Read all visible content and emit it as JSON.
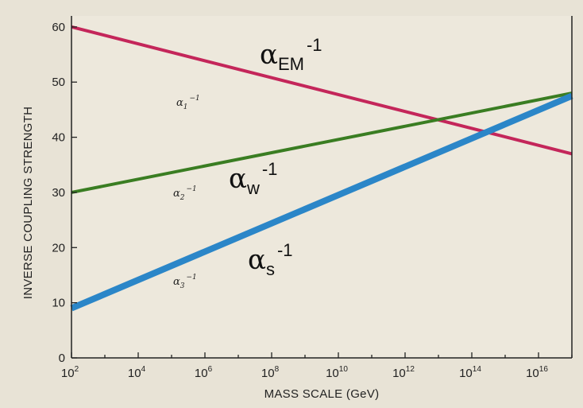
{
  "chart_data": {
    "type": "line",
    "xlabel": "MASS SCALE (GeV)",
    "ylabel": "INVERSE COUPLING STRENGTH",
    "xscale": "log",
    "xlim_exponent": [
      2,
      17
    ],
    "ylim": [
      0,
      62
    ],
    "x_ticks": [
      {
        "base": "10",
        "exp": "2",
        "value": 2
      },
      {
        "base": "10",
        "exp": "4",
        "value": 4
      },
      {
        "base": "10",
        "exp": "6",
        "value": 6
      },
      {
        "base": "10",
        "exp": "8",
        "value": 8
      },
      {
        "base": "10",
        "exp": "10",
        "value": 10
      },
      {
        "base": "10",
        "exp": "12",
        "value": 12
      },
      {
        "base": "10",
        "exp": "14",
        "value": 14
      },
      {
        "base": "10",
        "exp": "16",
        "value": 16
      }
    ],
    "y_ticks": [
      0,
      10,
      20,
      30,
      40,
      50,
      60
    ],
    "grid": false,
    "series": [
      {
        "key": "alpha1",
        "color": "#c4265a",
        "stroke": 4,
        "x_exponent": [
          2,
          17
        ],
        "values": [
          60,
          37
        ],
        "small_label": {
          "greek": "α",
          "sub": "1",
          "sup": "−1"
        },
        "big_label": {
          "greek": "α",
          "sub": "EM",
          "sup": "-1"
        }
      },
      {
        "key": "alpha2",
        "color": "#3a7d22",
        "stroke": 4,
        "x_exponent": [
          2,
          17
        ],
        "values": [
          30,
          48
        ],
        "small_label": {
          "greek": "α",
          "sub": "2",
          "sup": "−1"
        },
        "big_label": {
          "greek": "α",
          "sub": "w",
          "sup": "-1"
        }
      },
      {
        "key": "alpha3",
        "color": "#2b86c8",
        "stroke": 8,
        "x_exponent": [
          2,
          17
        ],
        "values": [
          9,
          47.5
        ],
        "small_label": {
          "greek": "α",
          "sub": "3",
          "sup": "−1"
        },
        "big_label": {
          "greek": "α",
          "sub": "s",
          "sup": "-1"
        }
      }
    ]
  }
}
